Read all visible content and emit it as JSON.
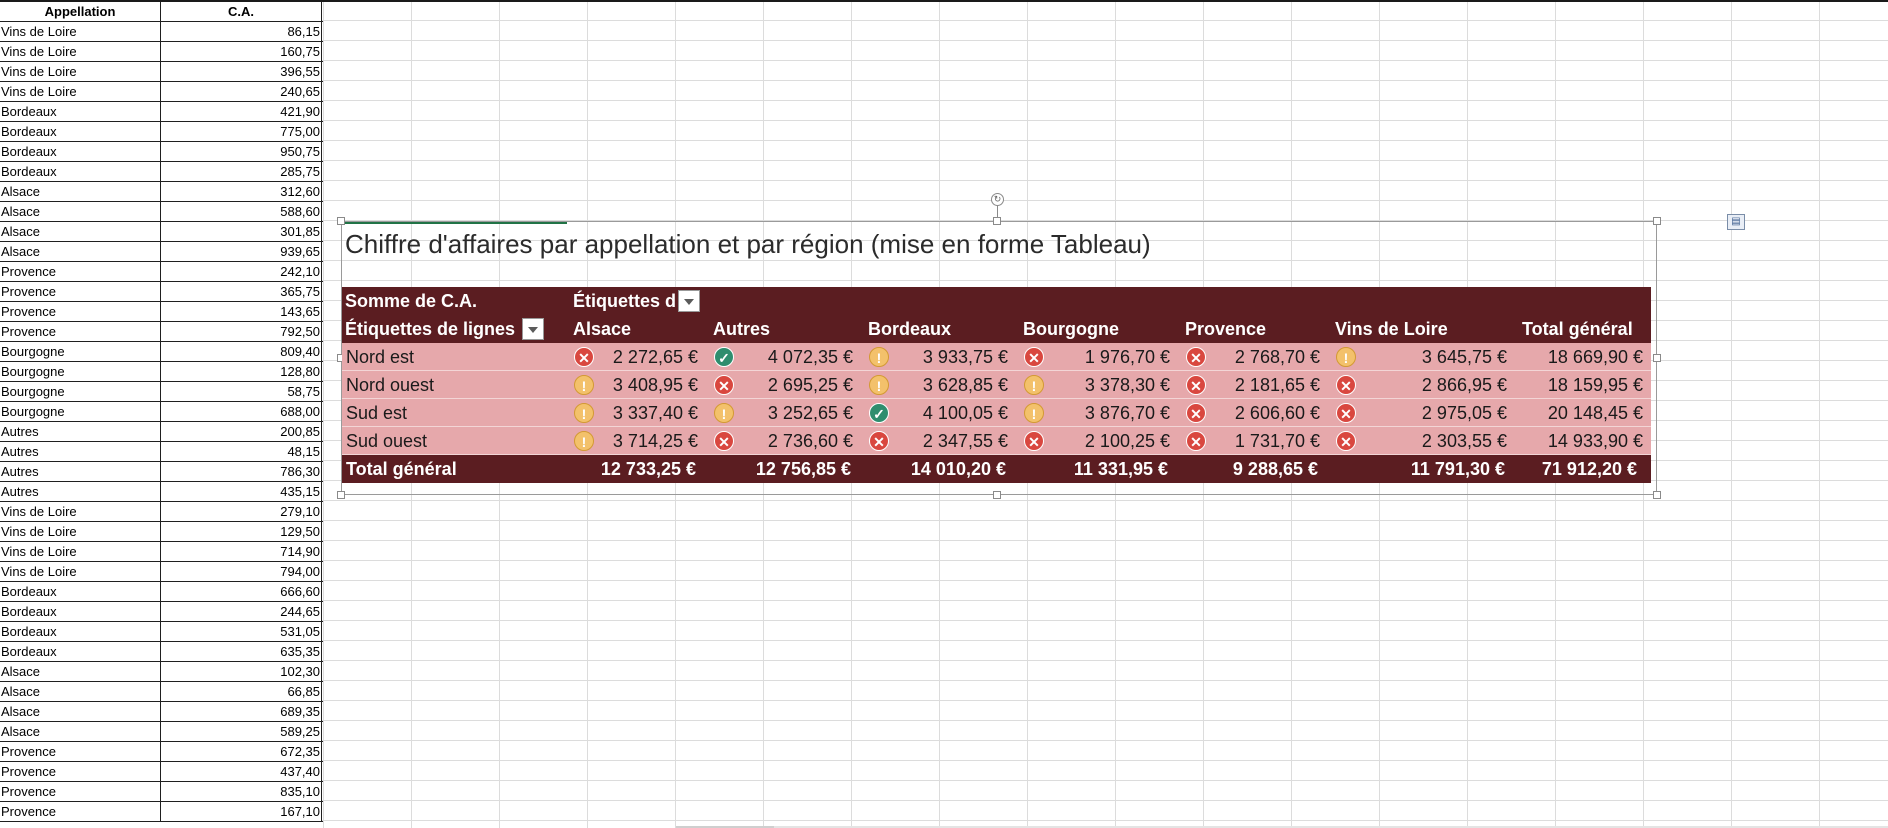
{
  "data_table": {
    "headers": [
      "Appellation",
      "C.A."
    ],
    "rows": [
      [
        "Vins de Loire",
        "86,15"
      ],
      [
        "Vins de Loire",
        "160,75"
      ],
      [
        "Vins de Loire",
        "396,55"
      ],
      [
        "Vins de Loire",
        "240,65"
      ],
      [
        "Bordeaux",
        "421,90"
      ],
      [
        "Bordeaux",
        "775,00"
      ],
      [
        "Bordeaux",
        "950,75"
      ],
      [
        "Bordeaux",
        "285,75"
      ],
      [
        "Alsace",
        "312,60"
      ],
      [
        "Alsace",
        "588,60"
      ],
      [
        "Alsace",
        "301,85"
      ],
      [
        "Alsace",
        "939,65"
      ],
      [
        "Provence",
        "242,10"
      ],
      [
        "Provence",
        "365,75"
      ],
      [
        "Provence",
        "143,65"
      ],
      [
        "Provence",
        "792,50"
      ],
      [
        "Bourgogne",
        "809,40"
      ],
      [
        "Bourgogne",
        "128,80"
      ],
      [
        "Bourgogne",
        "58,75"
      ],
      [
        "Bourgogne",
        "688,00"
      ],
      [
        "Autres",
        "200,85"
      ],
      [
        "Autres",
        "48,15"
      ],
      [
        "Autres",
        "786,30"
      ],
      [
        "Autres",
        "435,15"
      ],
      [
        "Vins de Loire",
        "279,10"
      ],
      [
        "Vins de Loire",
        "129,50"
      ],
      [
        "Vins de Loire",
        "714,90"
      ],
      [
        "Vins de Loire",
        "794,00"
      ],
      [
        "Bordeaux",
        "666,60"
      ],
      [
        "Bordeaux",
        "244,65"
      ],
      [
        "Bordeaux",
        "531,05"
      ],
      [
        "Bordeaux",
        "635,35"
      ],
      [
        "Alsace",
        "102,30"
      ],
      [
        "Alsace",
        "66,85"
      ],
      [
        "Alsace",
        "689,35"
      ],
      [
        "Alsace",
        "589,25"
      ],
      [
        "Provence",
        "672,35"
      ],
      [
        "Provence",
        "437,40"
      ],
      [
        "Provence",
        "835,10"
      ],
      [
        "Provence",
        "167,10"
      ]
    ]
  },
  "pivot": {
    "title": "Chiffre d'affaires par appellation et par région (mise en forme Tableau)",
    "sum_label": "Somme de C.A.",
    "col_labels_header": "Étiquettes d",
    "row_labels_header": "Étiquettes de lignes",
    "columns": [
      "Alsace",
      "Autres",
      "Bordeaux",
      "Bourgogne",
      "Provence",
      "Vins de Loire",
      "Total général"
    ],
    "rows": [
      {
        "label": "Nord est",
        "cells": [
          {
            "v": "2 272,65 €",
            "icon": "bad"
          },
          {
            "v": "4 072,35 €",
            "icon": "ok"
          },
          {
            "v": "3 933,75 €",
            "icon": "warn"
          },
          {
            "v": "1 976,70 €",
            "icon": "bad"
          },
          {
            "v": "2 768,70 €",
            "icon": "bad"
          },
          {
            "v": "3 645,75 €",
            "icon": "warn"
          },
          {
            "v": "18 669,90 €",
            "icon": ""
          }
        ]
      },
      {
        "label": "Nord ouest",
        "cells": [
          {
            "v": "3 408,95 €",
            "icon": "warn"
          },
          {
            "v": "2 695,25 €",
            "icon": "bad"
          },
          {
            "v": "3 628,85 €",
            "icon": "warn"
          },
          {
            "v": "3 378,30 €",
            "icon": "warn"
          },
          {
            "v": "2 181,65 €",
            "icon": "bad"
          },
          {
            "v": "2 866,95 €",
            "icon": "bad"
          },
          {
            "v": "18 159,95 €",
            "icon": ""
          }
        ]
      },
      {
        "label": "Sud est",
        "cells": [
          {
            "v": "3 337,40 €",
            "icon": "warn"
          },
          {
            "v": "3 252,65 €",
            "icon": "warn"
          },
          {
            "v": "4 100,05 €",
            "icon": "ok"
          },
          {
            "v": "3 876,70 €",
            "icon": "warn"
          },
          {
            "v": "2 606,60 €",
            "icon": "bad"
          },
          {
            "v": "2 975,05 €",
            "icon": "bad"
          },
          {
            "v": "20 148,45 €",
            "icon": ""
          }
        ]
      },
      {
        "label": "Sud ouest",
        "cells": [
          {
            "v": "3 714,25 €",
            "icon": "warn"
          },
          {
            "v": "2 736,60 €",
            "icon": "bad"
          },
          {
            "v": "2 347,55 €",
            "icon": "bad"
          },
          {
            "v": "2 100,25 €",
            "icon": "bad"
          },
          {
            "v": "1 731,70 €",
            "icon": "bad"
          },
          {
            "v": "2 303,55 €",
            "icon": "bad"
          },
          {
            "v": "14 933,90 €",
            "icon": ""
          }
        ]
      }
    ],
    "total_label": "Total général",
    "totals": [
      "12 733,25 €",
      "12 756,85 €",
      "14 010,20 €",
      "11 331,95 €",
      "9 288,65 €",
      "11 791,30 €",
      "71 912,20 €"
    ]
  },
  "icons": {
    "bad": {
      "name": "red-cross-icon",
      "glyph": "✕",
      "color": "#d9473f"
    },
    "warn": {
      "name": "exclamation-icon",
      "glyph": "!",
      "color": "#f3c16b"
    },
    "ok": {
      "name": "green-check-icon",
      "glyph": "✓",
      "color": "#2f8d6e"
    }
  },
  "colors": {
    "pivot_header": "#5b1d21",
    "pivot_body": "#e6a8ab"
  }
}
